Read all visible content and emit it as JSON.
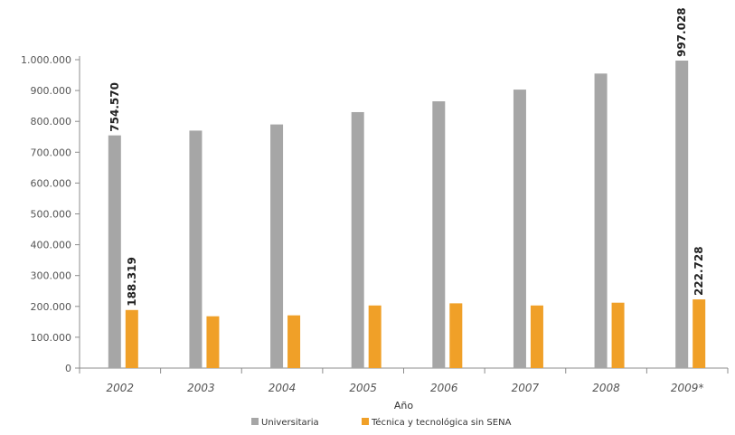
{
  "chart_data": {
    "type": "bar",
    "xlabel": "Año",
    "ylabel": "",
    "ylim": [
      0,
      1000000
    ],
    "yticks": [
      0,
      100000,
      200000,
      300000,
      400000,
      500000,
      600000,
      700000,
      800000,
      900000,
      1000000
    ],
    "ytick_labels": [
      "0",
      "100.000",
      "200.000",
      "300.000",
      "400.000",
      "500.000",
      "600.000",
      "700.000",
      "800.000",
      "900.000",
      "1.000.000"
    ],
    "categories": [
      "2002",
      "2003",
      "2004",
      "2005",
      "2006",
      "2007",
      "2008",
      "2009*"
    ],
    "series": [
      {
        "name": "Universitaria",
        "color": "#a6a6a6",
        "values": [
          754570,
          770000,
          790000,
          830000,
          865000,
          903000,
          955000,
          997028
        ]
      },
      {
        "name": "Técnica y tecnológica sin SENA",
        "color": "#f0a028",
        "values": [
          188319,
          168000,
          171000,
          203000,
          210000,
          203000,
          212000,
          222728
        ]
      }
    ],
    "data_labels": [
      {
        "series": 0,
        "index": 0,
        "text": "754.570"
      },
      {
        "series": 0,
        "index": 7,
        "text": "997.028"
      },
      {
        "series": 1,
        "index": 0,
        "text": "188.319"
      },
      {
        "series": 1,
        "index": 7,
        "text": "222.728"
      }
    ],
    "grid": false,
    "legend_position": "bottom"
  }
}
